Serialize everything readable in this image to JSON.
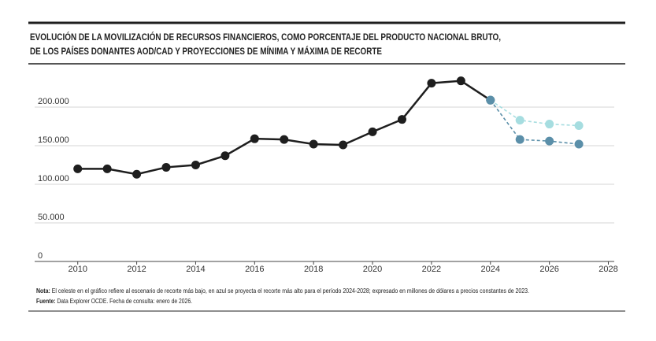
{
  "chart_data": {
    "type": "line",
    "title": [
      "EVOLUCIÓN DE LA MOVILIZACIÓN DE RECURSOS FINANCIEROS, COMO PORCENTAJE DEL PRODUCTO NACIONAL BRUTO,",
      "DE LOS PAÍSES DONANTES AOD/CAD Y PROYECCIONES DE MÍNIMA Y MÁXIMA DE RECORTE"
    ],
    "series": [
      {
        "color": "#1e1e1e",
        "style": "solid",
        "x": [
          2010,
          2011,
          2012,
          2013,
          2014,
          2015,
          2016,
          2017,
          2018,
          2019,
          2020,
          2021,
          2022,
          2023,
          2024
        ],
        "values": [
          120000,
          120000,
          113000,
          122000,
          125000,
          137000,
          159000,
          158000,
          152000,
          151000,
          168000,
          184000,
          231000,
          234000,
          209000
        ]
      },
      {
        "color": "#a6dde0",
        "style": "dashed",
        "x": [
          2024,
          2025,
          2026,
          2027
        ],
        "values": [
          209000,
          183000,
          178000,
          176000
        ]
      },
      {
        "color": "#5b8fa9",
        "style": "dashed",
        "x": [
          2024,
          2025,
          2026,
          2027
        ],
        "values": [
          209000,
          158000,
          156000,
          152000
        ]
      }
    ],
    "xlim": [
      2009.5,
      2028.2
    ],
    "xticks": [
      2010,
      2012,
      2014,
      2016,
      2018,
      2020,
      2022,
      2024,
      2026,
      2028
    ],
    "ylim": [
      0,
      250000
    ],
    "yticks": [
      0,
      {
        "value": 50000,
        "label": "50.000"
      },
      {
        "value": 100000,
        "label": "100.000"
      },
      {
        "value": 150000,
        "label": "150.000"
      },
      {
        "value": 200000,
        "label": "200.000"
      }
    ],
    "grid": true,
    "notes": [
      {
        "label": "Nota:",
        "text": " El celeste en el gráfico refiere al escenario de recorte más bajo, en azul se proyecta el recorte más alto para el período 2024-2028; expresado en millones de dólares a precios constantes de 2023."
      },
      {
        "label": "Fuente:",
        "text": " Data Explorer OCDE. Fecha de consulta: enero de 2026."
      }
    ]
  }
}
